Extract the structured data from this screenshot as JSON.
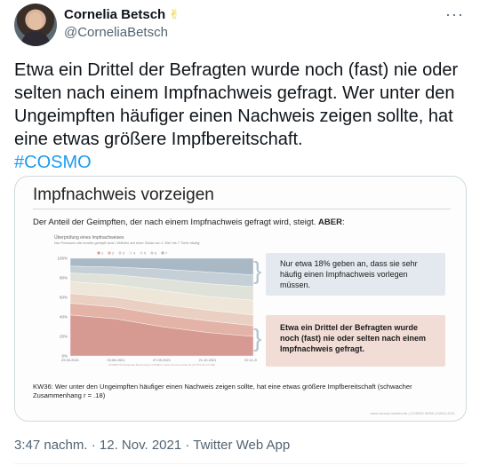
{
  "author": {
    "name": "Cornelia Betsch",
    "handle": "@CorneliaBetsch",
    "emoji": "✌"
  },
  "more_icon": "more-horizontal-icon",
  "tweet": {
    "text": "Etwa ein Drittel der Befragten wurde noch (fast) nie oder selten nach einem Impfnachweis gefragt. Wer unter den Ungeimpften häufiger einen Nachweis zeigen sollte, hat eine etwas größere Impfbereitschaft.",
    "hashtag": "#COSMO"
  },
  "card": {
    "title": "Impfnachweis vorzeigen",
    "subtitle_plain": "Der Anteil der Geimpften, der nach einem Impfnachweis gefragt wird, steigt. ",
    "subtitle_bold": "ABER",
    "subtitle_end": ":",
    "callout_top": "Nur etwa 18% geben an, dass sie sehr häufig einen Impfnachweis vorlegen müssen.",
    "callout_bottom": "Etwa ein Drittel der Befragten wurde noch (fast) nie oder selten nach einem Impfnachweis gefragt.",
    "footnote": "KW36: Wer unter den Ungeimpften häufiger einen Nachweis zeigen sollte, hat eine  etwas größere Impfbereitschaft (schwacher Zusammenhang r = .18)",
    "footer_meta": "www.corona-monitor.de | COSMO 54/55 | KW44 2021"
  },
  "chart_data": {
    "type": "area",
    "title": "Überprüfung eines Impfnachweises",
    "subtitle": "Nur Personen die bereits geimpft sind • Wählen auf einer Skala von 1 'Nie' bis 7 'Sehr häufig'",
    "legend": [
      "1",
      "2",
      "3",
      "4",
      "5",
      "6",
      "7"
    ],
    "x": [
      "29.06.2021",
      "03.08.2021",
      "07.09.2021",
      "21.10.2021",
      "02.11.2021"
    ],
    "y_ticks": [
      "0%",
      "20%",
      "40%",
      "60%",
      "80%",
      "100%"
    ],
    "ylim": [
      0,
      100
    ],
    "series_colors": [
      "#d79a92",
      "#e2b3a6",
      "#ead0c2",
      "#eee6d8",
      "#dfe2d8",
      "#c5d0d6",
      "#a8b8c4"
    ],
    "series": [
      {
        "name": "1",
        "values": [
          42,
          38,
          30,
          24,
          20
        ]
      },
      {
        "name": "2",
        "values": [
          12,
          12,
          12,
          12,
          11
        ]
      },
      {
        "name": "3",
        "values": [
          10,
          10,
          11,
          11,
          11
        ]
      },
      {
        "name": "4",
        "values": [
          12,
          13,
          14,
          14,
          15
        ]
      },
      {
        "name": "5",
        "values": [
          9,
          10,
          12,
          13,
          14
        ]
      },
      {
        "name": "6",
        "values": [
          7,
          8,
          10,
          12,
          12
        ]
      },
      {
        "name": "7",
        "values": [
          8,
          9,
          11,
          14,
          17
        ]
      }
    ],
    "note": "COSMO 54 (Snapshot Monitoring) | COSMO | www.corona-monitor.de (CC BY-SA 4.0 DE)"
  },
  "meta": {
    "time": "3:47 nachm.",
    "date": "12. Nov. 2021",
    "source": "Twitter Web App",
    "separator": "·"
  }
}
